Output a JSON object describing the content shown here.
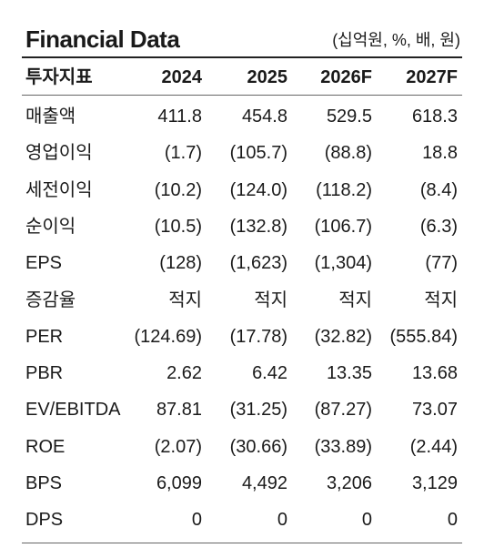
{
  "header": {
    "title": "Financial Data",
    "unit": "(십억원, %, 배, 원)"
  },
  "table": {
    "columns": [
      "투자지표",
      "2024",
      "2025",
      "2026F",
      "2027F"
    ],
    "rows": [
      [
        "매출액",
        "411.8",
        "454.8",
        "529.5",
        "618.3"
      ],
      [
        "영업이익",
        "(1.7)",
        "(105.7)",
        "(88.8)",
        "18.8"
      ],
      [
        "세전이익",
        "(10.2)",
        "(124.0)",
        "(118.2)",
        "(8.4)"
      ],
      [
        "순이익",
        "(10.5)",
        "(132.8)",
        "(106.7)",
        "(6.3)"
      ],
      [
        "EPS",
        "(128)",
        "(1,623)",
        "(1,304)",
        "(77)"
      ],
      [
        "증감율",
        "적지",
        "적지",
        "적지",
        "적지"
      ],
      [
        "PER",
        "(124.69)",
        "(17.78)",
        "(32.82)",
        "(555.84)"
      ],
      [
        "PBR",
        "2.62",
        "6.42",
        "13.35",
        "13.68"
      ],
      [
        "EV/EBITDA",
        "87.81",
        "(31.25)",
        "(87.27)",
        "73.07"
      ],
      [
        "ROE",
        "(2.07)",
        "(30.66)",
        "(33.89)",
        "(2.44)"
      ],
      [
        "BPS",
        "6,099",
        "4,492",
        "3,206",
        "3,129"
      ],
      [
        "DPS",
        "0",
        "0",
        "0",
        "0"
      ]
    ]
  }
}
